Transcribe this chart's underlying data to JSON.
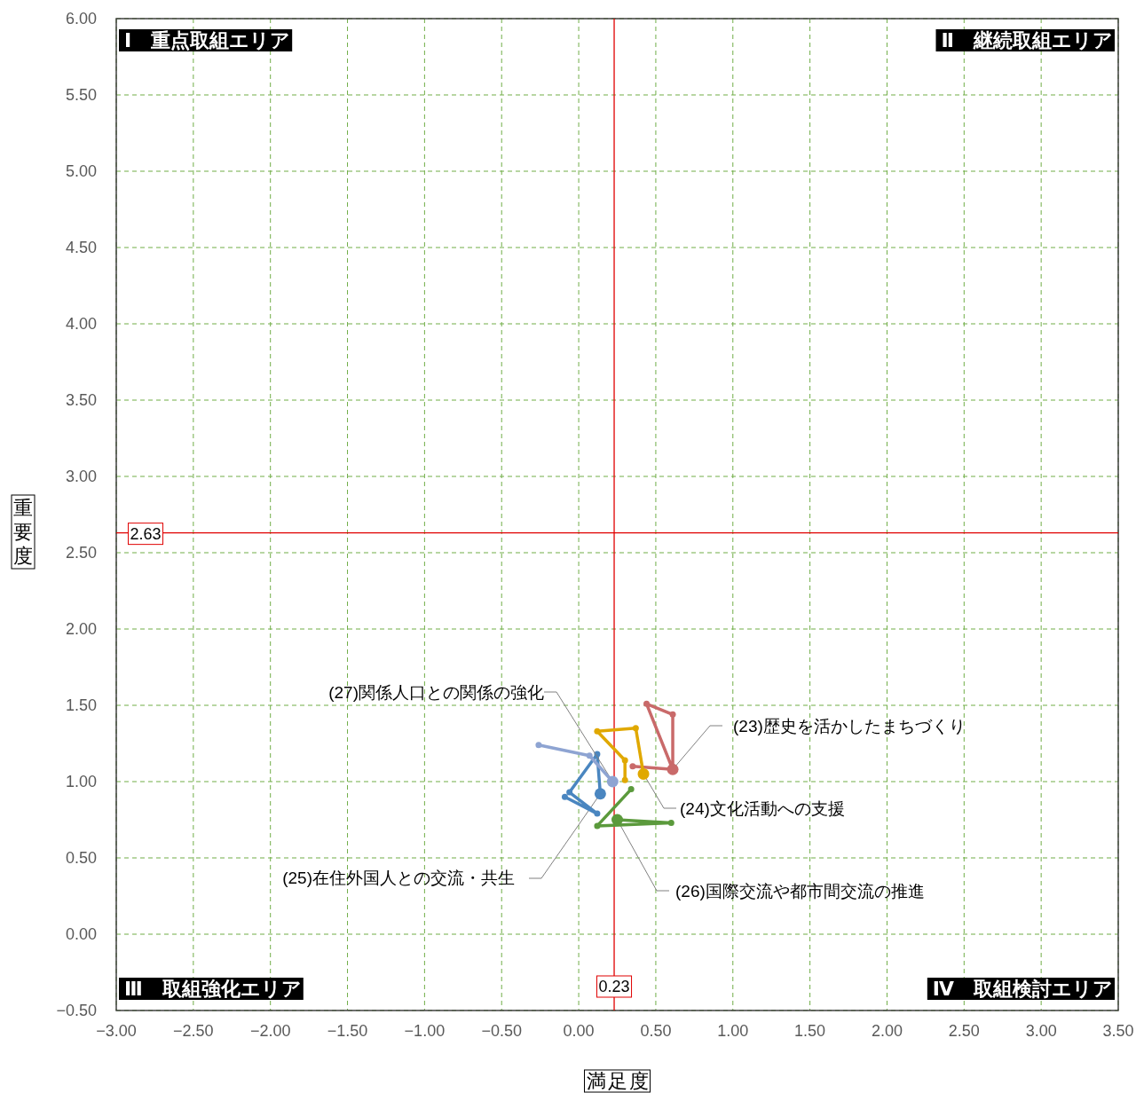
{
  "chart_data": {
    "type": "line",
    "xlabel": "満足度",
    "ylabel": "重要度",
    "xlim": [
      -3,
      3.5
    ],
    "ylim": [
      -0.5,
      6
    ],
    "xticks": [
      {
        "value": -3,
        "label": "−3.00"
      },
      {
        "value": -2.5,
        "label": "−2.50"
      },
      {
        "value": -2,
        "label": "−2.00"
      },
      {
        "value": -1.5,
        "label": "−1.50"
      },
      {
        "value": -1,
        "label": "−1.00"
      },
      {
        "value": -0.5,
        "label": "−0.50"
      },
      {
        "value": 0,
        "label": "0.00"
      },
      {
        "value": 0.5,
        "label": "0.50"
      },
      {
        "value": 1,
        "label": "1.00"
      },
      {
        "value": 1.5,
        "label": "1.50"
      },
      {
        "value": 2,
        "label": "2.00"
      },
      {
        "value": 2.5,
        "label": "2.50"
      },
      {
        "value": 3,
        "label": "3.00"
      },
      {
        "value": 3.5,
        "label": "3.50"
      }
    ],
    "yticks": [
      {
        "value": -0.5,
        "label": "−0.50"
      },
      {
        "value": 0,
        "label": "0.00"
      },
      {
        "value": 0.5,
        "label": "0.50"
      },
      {
        "value": 1,
        "label": "1.00"
      },
      {
        "value": 1.5,
        "label": "1.50"
      },
      {
        "value": 2,
        "label": "2.00"
      },
      {
        "value": 2.5,
        "label": "2.50"
      },
      {
        "value": 3,
        "label": "3.00"
      },
      {
        "value": 3.5,
        "label": "3.50"
      },
      {
        "value": 4,
        "label": "4.00"
      },
      {
        "value": 4.5,
        "label": "4.50"
      },
      {
        "value": 5,
        "label": "5.00"
      },
      {
        "value": 5.5,
        "label": "5.50"
      },
      {
        "value": 6,
        "label": "6.00"
      }
    ],
    "grid": true,
    "marker": "circle",
    "line_style": "solid",
    "series": [
      {
        "name": "(23)歴史を活かしたまちづくり",
        "color": "#c96a6a",
        "x": [
          0.35,
          0.61,
          0.61,
          0.44,
          0.61
        ],
        "values": [
          1.1,
          1.08,
          1.44,
          1.51,
          1.08
        ]
      },
      {
        "name": "(24)文化活動への支援",
        "color": "#e0a800",
        "x": [
          0.3,
          0.3,
          0.12,
          0.37,
          0.42
        ],
        "values": [
          1.01,
          1.14,
          1.33,
          1.35,
          1.05
        ]
      },
      {
        "name": "(25)在住外国人との交流・共生",
        "color": "#4a86c0",
        "x": [
          -0.09,
          0.12,
          -0.06,
          0.12,
          0.14
        ],
        "values": [
          0.9,
          0.79,
          0.93,
          1.18,
          0.92
        ]
      },
      {
        "name": "(26)国際交流や都市間交流の推進",
        "color": "#5b9a3c",
        "x": [
          0.34,
          0.12,
          0.6,
          0.25
        ],
        "values": [
          0.95,
          0.71,
          0.73,
          0.75
        ]
      },
      {
        "name": "(27)関係人口との関係の強化",
        "color": "#8ea4d2",
        "x": [
          -0.26,
          0.07,
          0.22
        ],
        "values": [
          1.24,
          1.17,
          1.0
        ]
      }
    ],
    "ref_lines": [
      {
        "axis": "x",
        "value": 0.23,
        "label": "0.23",
        "color": "#e00000"
      },
      {
        "axis": "y",
        "value": 2.63,
        "label": "2.63",
        "color": "#e00000"
      }
    ],
    "annotations": [
      "Ⅰ　重点取組エリア",
      "Ⅱ　継続取組エリア",
      "Ⅲ　取組強化エリア",
      "Ⅳ　取組検討エリア"
    ]
  }
}
